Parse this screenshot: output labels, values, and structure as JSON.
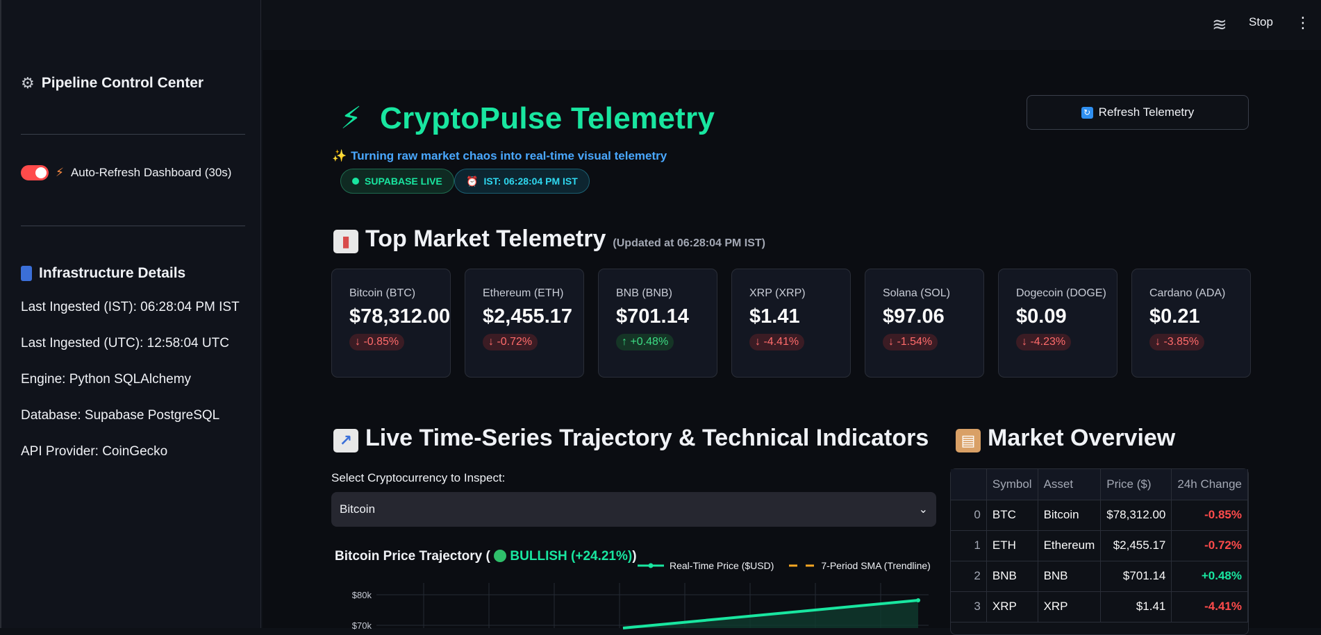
{
  "sidebar": {
    "title": "Pipeline Control Center",
    "auto_refresh_label": "Auto-Refresh Dashboard (30s)",
    "infra_title": "Infrastructure Details",
    "details": [
      "Last Ingested (IST): 06:28:04 PM IST",
      "Last Ingested (UTC): 12:58:04 UTC",
      "Engine: Python SQLAlchemy",
      "Database: Supabase PostgreSQL",
      "API Provider: CoinGecko"
    ]
  },
  "topbar": {
    "stop_label": "Stop"
  },
  "header": {
    "title": "CryptoPulse Telemetry",
    "subtitle": "Turning raw market chaos into real-time visual telemetry",
    "refresh_label": "Refresh Telemetry",
    "badge_supabase": "SUPABASE LIVE",
    "badge_ist": "IST: 06:28:04 PM IST"
  },
  "top_market": {
    "title": "Top Market Telemetry",
    "updated": "(Updated at 06:28:04 PM IST)",
    "cards": [
      {
        "name": "Bitcoin (BTC)",
        "price": "$78,312.00",
        "delta": "-0.85%",
        "direction": "down"
      },
      {
        "name": "Ethereum (ETH)",
        "price": "$2,455.17",
        "delta": "-0.72%",
        "direction": "down"
      },
      {
        "name": "BNB (BNB)",
        "price": "$701.14",
        "delta": "+0.48%",
        "direction": "up"
      },
      {
        "name": "XRP (XRP)",
        "price": "$1.41",
        "delta": "-4.41%",
        "direction": "down"
      },
      {
        "name": "Solana (SOL)",
        "price": "$97.06",
        "delta": "-1.54%",
        "direction": "down"
      },
      {
        "name": "Dogecoin (DOGE)",
        "price": "$0.09",
        "delta": "-4.23%",
        "direction": "down"
      },
      {
        "name": "Cardano (ADA)",
        "price": "$0.21",
        "delta": "-3.85%",
        "direction": "down"
      }
    ]
  },
  "timeseries": {
    "title": "Live Time-Series Trajectory & Technical Indicators",
    "select_label": "Select Cryptocurrency to Inspect:",
    "selected": "Bitcoin",
    "chart_title_prefix": "Bitcoin Price Trajectory (",
    "chart_trend": "BULLISH (+24.21%)",
    "chart_title_suffix": ")",
    "legend_price": "Real-Time Price ($USD)",
    "legend_sma": "7-Period SMA (Trendline)"
  },
  "overview": {
    "title": "Market Overview",
    "columns": [
      "",
      "Symbol",
      "Asset",
      "Price ($)",
      "24h Change"
    ],
    "rows": [
      {
        "idx": "0",
        "symbol": "BTC",
        "asset": "Bitcoin",
        "price": "$78,312.00",
        "change": "-0.85%",
        "dir": "neg"
      },
      {
        "idx": "1",
        "symbol": "ETH",
        "asset": "Ethereum",
        "price": "$2,455.17",
        "change": "-0.72%",
        "dir": "neg"
      },
      {
        "idx": "2",
        "symbol": "BNB",
        "asset": "BNB",
        "price": "$701.14",
        "change": "+0.48%",
        "dir": "pos"
      },
      {
        "idx": "3",
        "symbol": "XRP",
        "asset": "XRP",
        "price": "$1.41",
        "change": "-4.41%",
        "dir": "neg"
      }
    ]
  },
  "chart_data": {
    "type": "line",
    "title": "Bitcoin Price Trajectory ( BULLISH (+24.21%))",
    "yticks": [
      "$80k",
      "$70k"
    ],
    "series": [
      {
        "name": "Real-Time Price ($USD)",
        "color": "#19e6a0"
      },
      {
        "name": "7-Period SMA (Trendline)",
        "color": "#f5a623"
      }
    ]
  },
  "colors": {
    "accent": "#19e6a0",
    "negative": "#ff4b4b",
    "toggle": "#ff4b4b"
  }
}
